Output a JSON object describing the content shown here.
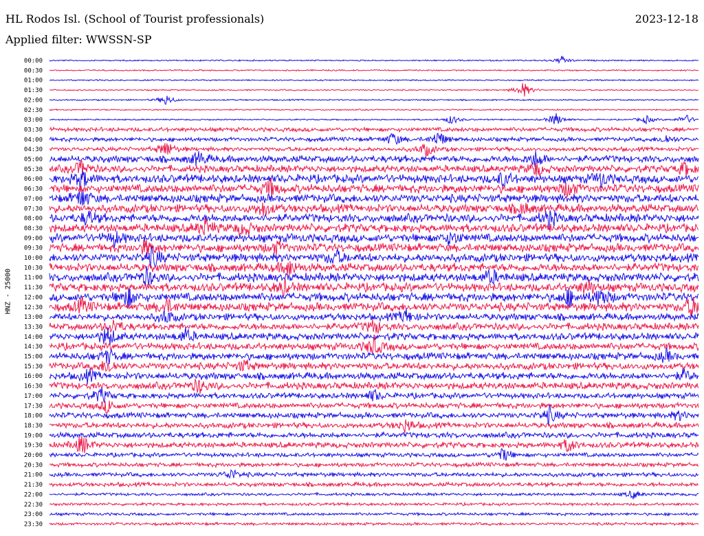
{
  "header": {
    "station": "HL Rodos Isl. (School of Tourist professionals)",
    "date": "2023-12-18",
    "filter": "Applied filter: WWSSN-SP"
  },
  "colors": {
    "blue_trace": "#1a10e6",
    "red_trace": "#eb1a4b"
  },
  "chart_data": {
    "type": "line",
    "title": "HL Rodos Isl. (School of Tourist professionals)",
    "ylabel": "HNZ - 25000",
    "xlabel": "",
    "grid": false,
    "row_labels": [
      "00:00",
      "00:30",
      "01:00",
      "01:30",
      "02:00",
      "02:30",
      "03:00",
      "03:30",
      "04:00",
      "04:30",
      "05:00",
      "05:30",
      "06:00",
      "06:30",
      "07:00",
      "07:30",
      "08:00",
      "08:30",
      "09:00",
      "09:30",
      "10:00",
      "10:30",
      "11:00",
      "11:30",
      "12:00",
      "12:30",
      "13:00",
      "13:30",
      "14:00",
      "14:30",
      "15:00",
      "15:30",
      "16:00",
      "16:30",
      "17:00",
      "17:30",
      "18:00",
      "18:30",
      "19:00",
      "19:30",
      "20:00",
      "20:30",
      "21:00",
      "21:30",
      "22:00",
      "22:30",
      "23:00",
      "23:30"
    ],
    "row_colors": [
      "blue",
      "red"
    ],
    "noise_amplitude": [
      1,
      1,
      1,
      1,
      1,
      1,
      1,
      3,
      3,
      3,
      5,
      5,
      6,
      6,
      6,
      6,
      6,
      6,
      6,
      6,
      6,
      6,
      6,
      6,
      6,
      6,
      5,
      5,
      5,
      5,
      5,
      5,
      5,
      5,
      4,
      4,
      4,
      4,
      4,
      4,
      3,
      3,
      3,
      3,
      2,
      2,
      2,
      2
    ],
    "events": [
      {
        "row": 0,
        "t": 0.79,
        "amp": 6
      },
      {
        "row": 3,
        "t": 0.73,
        "amp": 12
      },
      {
        "row": 4,
        "t": 0.18,
        "amp": 8
      },
      {
        "row": 6,
        "t": 0.62,
        "amp": 7
      },
      {
        "row": 6,
        "t": 0.78,
        "amp": 10
      },
      {
        "row": 6,
        "t": 0.92,
        "amp": 6
      },
      {
        "row": 6,
        "t": 0.98,
        "amp": 8
      },
      {
        "row": 8,
        "t": 0.53,
        "amp": 10
      },
      {
        "row": 8,
        "t": 0.6,
        "amp": 12
      },
      {
        "row": 8,
        "t": 0.95,
        "amp": 6
      },
      {
        "row": 9,
        "t": 0.18,
        "amp": 12
      },
      {
        "row": 9,
        "t": 0.58,
        "amp": 10
      },
      {
        "row": 10,
        "t": 0.23,
        "amp": 10
      },
      {
        "row": 10,
        "t": 0.75,
        "amp": 12
      },
      {
        "row": 11,
        "t": 0.05,
        "amp": 12
      },
      {
        "row": 11,
        "t": 0.75,
        "amp": 10
      },
      {
        "row": 11,
        "t": 0.98,
        "amp": 10
      },
      {
        "row": 12,
        "t": 0.05,
        "amp": 14
      },
      {
        "row": 12,
        "t": 0.7,
        "amp": 10
      },
      {
        "row": 12,
        "t": 0.85,
        "amp": 10
      },
      {
        "row": 13,
        "t": 0.34,
        "amp": 12
      },
      {
        "row": 13,
        "t": 0.8,
        "amp": 12
      },
      {
        "row": 14,
        "t": 0.05,
        "amp": 14
      },
      {
        "row": 15,
        "t": 0.33,
        "amp": 10
      },
      {
        "row": 15,
        "t": 0.73,
        "amp": 8
      },
      {
        "row": 16,
        "t": 0.06,
        "amp": 10
      },
      {
        "row": 16,
        "t": 0.77,
        "amp": 12
      },
      {
        "row": 17,
        "t": 0.24,
        "amp": 12
      },
      {
        "row": 17,
        "t": 0.3,
        "amp": 10
      },
      {
        "row": 18,
        "t": 0.1,
        "amp": 10
      },
      {
        "row": 18,
        "t": 0.62,
        "amp": 10
      },
      {
        "row": 19,
        "t": 0.15,
        "amp": 10
      },
      {
        "row": 19,
        "t": 0.35,
        "amp": 8
      },
      {
        "row": 20,
        "t": 0.16,
        "amp": 14
      },
      {
        "row": 20,
        "t": 0.44,
        "amp": 10
      },
      {
        "row": 21,
        "t": 0.37,
        "amp": 12
      },
      {
        "row": 22,
        "t": 0.15,
        "amp": 12
      },
      {
        "row": 22,
        "t": 0.68,
        "amp": 10
      },
      {
        "row": 23,
        "t": 0.36,
        "amp": 10
      },
      {
        "row": 23,
        "t": 0.83,
        "amp": 10
      },
      {
        "row": 24,
        "t": 0.12,
        "amp": 14
      },
      {
        "row": 24,
        "t": 0.8,
        "amp": 12
      },
      {
        "row": 24,
        "t": 0.85,
        "amp": 14
      },
      {
        "row": 25,
        "t": 0.05,
        "amp": 10
      },
      {
        "row": 25,
        "t": 0.18,
        "amp": 10
      },
      {
        "row": 25,
        "t": 0.99,
        "amp": 14
      },
      {
        "row": 26,
        "t": 0.18,
        "amp": 10
      },
      {
        "row": 26,
        "t": 0.55,
        "amp": 10
      },
      {
        "row": 27,
        "t": 0.1,
        "amp": 10
      },
      {
        "row": 27,
        "t": 0.5,
        "amp": 10
      },
      {
        "row": 28,
        "t": 0.09,
        "amp": 14
      },
      {
        "row": 28,
        "t": 0.21,
        "amp": 10
      },
      {
        "row": 29,
        "t": 0.5,
        "amp": 14
      },
      {
        "row": 30,
        "t": 0.09,
        "amp": 10
      },
      {
        "row": 30,
        "t": 0.95,
        "amp": 8
      },
      {
        "row": 31,
        "t": 0.09,
        "amp": 10
      },
      {
        "row": 31,
        "t": 0.3,
        "amp": 8
      },
      {
        "row": 32,
        "t": 0.06,
        "amp": 8
      },
      {
        "row": 32,
        "t": 0.98,
        "amp": 8
      },
      {
        "row": 33,
        "t": 0.23,
        "amp": 10
      },
      {
        "row": 34,
        "t": 0.08,
        "amp": 10
      },
      {
        "row": 34,
        "t": 0.5,
        "amp": 8
      },
      {
        "row": 35,
        "t": 0.09,
        "amp": 10
      },
      {
        "row": 36,
        "t": 0.77,
        "amp": 12
      },
      {
        "row": 36,
        "t": 0.97,
        "amp": 6
      },
      {
        "row": 37,
        "t": 0.55,
        "amp": 10
      },
      {
        "row": 39,
        "t": 0.05,
        "amp": 14
      },
      {
        "row": 39,
        "t": 0.8,
        "amp": 10
      },
      {
        "row": 40,
        "t": 0.7,
        "amp": 10
      },
      {
        "row": 42,
        "t": 0.28,
        "amp": 8
      },
      {
        "row": 44,
        "t": 0.9,
        "amp": 6
      }
    ]
  }
}
